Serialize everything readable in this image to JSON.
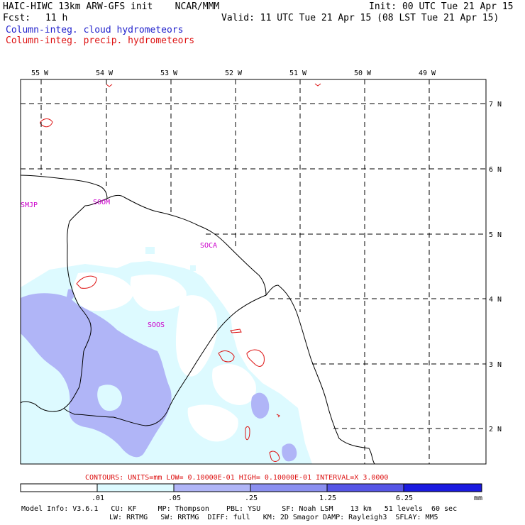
{
  "header": {
    "title_left": "HAIC-HIWC 13km ARW-GFS init    NCAR/MMM",
    "fcst_label": "Fcst:",
    "fcst_value": "11 h",
    "init": "Init: 00 UTC Tue 21 Apr 15",
    "valid": "Valid: 11 UTC Tue 21 Apr 15 (08 LST Tue 21 Apr 15)",
    "field1": "Column-integ. cloud hydrometeors",
    "field2": "Column-integ. precip. hydrometeors"
  },
  "colors": {
    "field1": "#2222cc",
    "field2": "#dd1111",
    "site": "#cc00cc",
    "shade_low": "#ddfaff",
    "shade_mid": "#b0b5f7",
    "shade_high": "#7777ee",
    "shade_top": "#1a1ae0"
  },
  "map": {
    "lon_labels": [
      "55 W",
      "54 W",
      "53 W",
      "52 W",
      "51 W",
      "50 W",
      "49 W"
    ],
    "lat_labels": [
      "7 N",
      "6 N",
      "5 N",
      "4 N",
      "3 N",
      "2 N"
    ],
    "sites": [
      "SMJP",
      "SOOM",
      "SOCA",
      "SOOS"
    ]
  },
  "contours_line": "CONTOURS:  UNITS=mm  LOW= 0.10000E-01  HIGH= 0.10000E-01  INTERVAL=X  3.0000",
  "colorbar": {
    "labels": [
      ".01",
      ".05",
      ".25",
      "1.25",
      "6.25"
    ],
    "unit": "mm"
  },
  "model_info": {
    "line1": "Model Info: V3.6.1   CU: KF     MP: Thompson    PBL: YSU     SF: Noah LSM    13 km   51 levels  60 sec",
    "line2": "LW: RRTMG   SW: RRTMG  DIFF: full   KM: 2D Smagor DAMP: Rayleigh3  SFLAY: MM5"
  }
}
